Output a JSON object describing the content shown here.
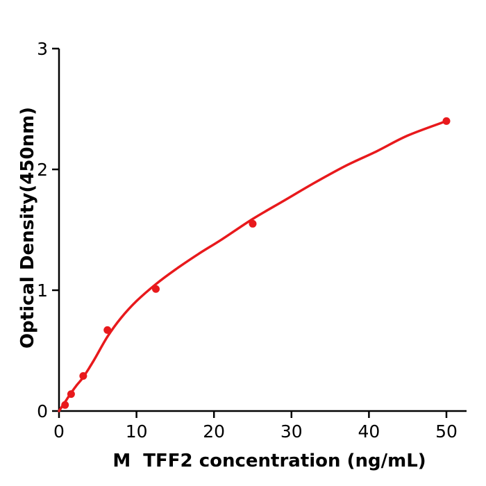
{
  "page": {
    "background": "#ffffff"
  },
  "chart_data": {
    "type": "scatter",
    "title": "",
    "xlabel": "M  TFF2 concentration (ng/mL)",
    "ylabel": "Optical Density(450nm)",
    "xlim": [
      0,
      52.6
    ],
    "ylim": [
      0,
      3
    ],
    "x_ticks": [
      0,
      10,
      20,
      30,
      40,
      50
    ],
    "y_ticks": [
      0,
      1,
      2,
      3
    ],
    "grid": false,
    "legend": false,
    "axis_color": "#000000",
    "accent_color": "#e8191c",
    "series": [
      {
        "name": "M TFF2 standard points",
        "type": "scatter",
        "color": "#e8191c",
        "marker": "circle",
        "points": [
          [
            0.78,
            0.05
          ],
          [
            1.56,
            0.14
          ],
          [
            3.125,
            0.29
          ],
          [
            6.25,
            0.67
          ],
          [
            12.5,
            1.01
          ],
          [
            25,
            1.55
          ],
          [
            50,
            2.4
          ]
        ]
      },
      {
        "name": "fitted standard curve",
        "type": "line",
        "color": "#e8191c",
        "points": [
          [
            0,
            0.0
          ],
          [
            0.78,
            0.075
          ],
          [
            1.56,
            0.15
          ],
          [
            2.3,
            0.215
          ],
          [
            3.125,
            0.28
          ],
          [
            4.5,
            0.42
          ],
          [
            6.25,
            0.615
          ],
          [
            8,
            0.77
          ],
          [
            10,
            0.91
          ],
          [
            12.5,
            1.05
          ],
          [
            15,
            1.17
          ],
          [
            18,
            1.3
          ],
          [
            21,
            1.42
          ],
          [
            25,
            1.59
          ],
          [
            29,
            1.74
          ],
          [
            33,
            1.89
          ],
          [
            37,
            2.03
          ],
          [
            41,
            2.15
          ],
          [
            45,
            2.28
          ],
          [
            50,
            2.4
          ]
        ]
      }
    ]
  }
}
